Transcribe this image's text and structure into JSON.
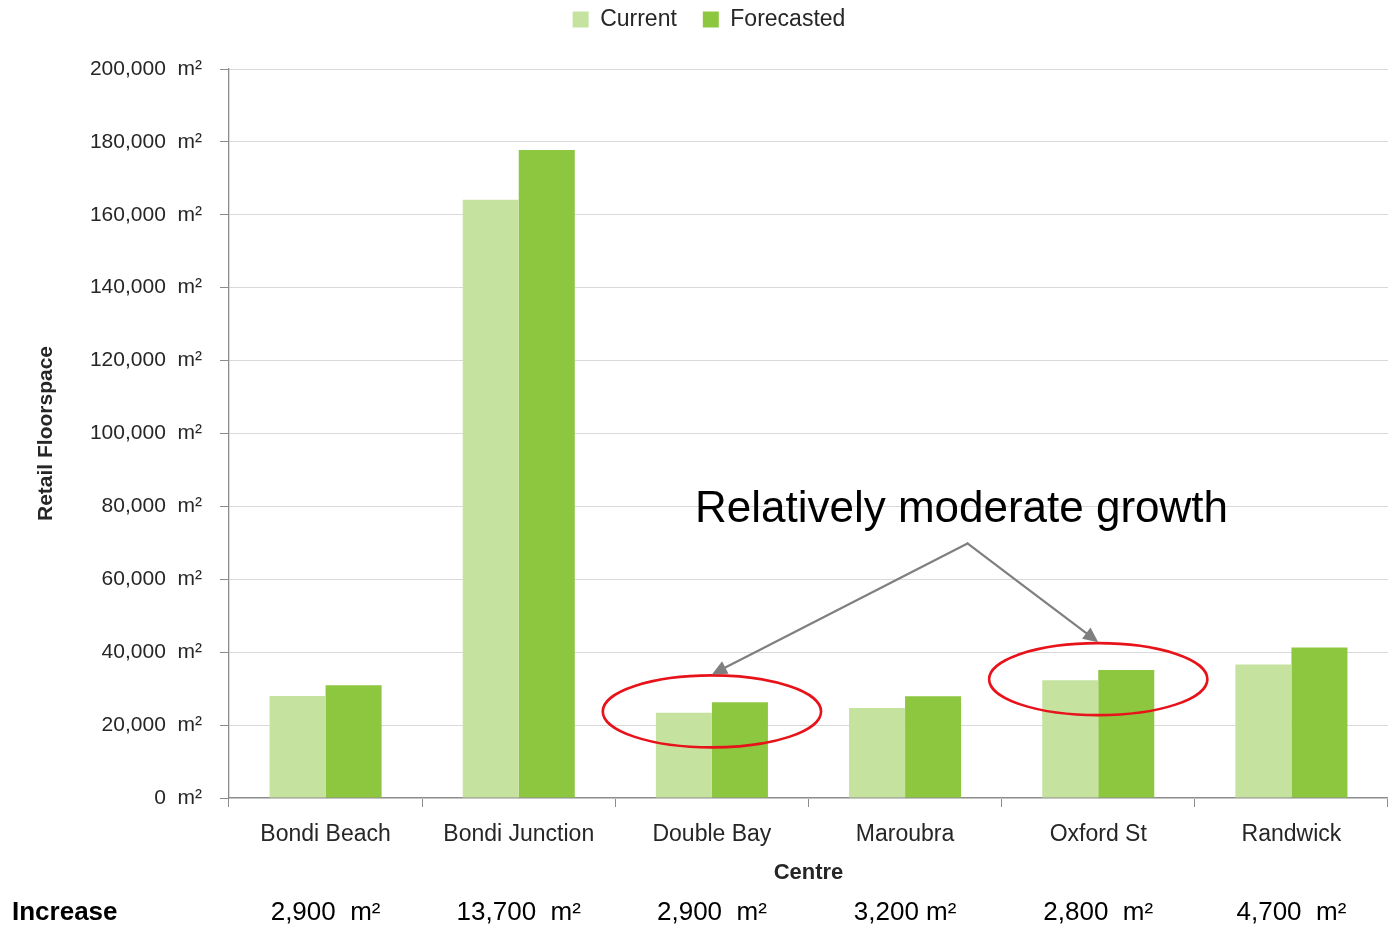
{
  "chart_data": {
    "type": "bar",
    "categories": [
      "Bondi Beach",
      "Bondi Junction",
      "Double Bay",
      "Maroubra",
      "Oxford St",
      "Randwick"
    ],
    "series": [
      {
        "name": "Current",
        "color": "#c5e29f",
        "values": [
          28000,
          164100,
          23400,
          24700,
          32300,
          36600
        ]
      },
      {
        "name": "Forecasted",
        "color": "#8dc63f",
        "values": [
          30900,
          177800,
          26300,
          27900,
          35100,
          41300
        ]
      }
    ],
    "xlabel": "Centre",
    "ylabel": "Retail Floorspace",
    "ylim": [
      0,
      200000
    ],
    "yticks": [
      {
        "value": 0,
        "label": "0  m²"
      },
      {
        "value": 20000,
        "label": "20,000  m²"
      },
      {
        "value": 40000,
        "label": "40,000  m²"
      },
      {
        "value": 60000,
        "label": "60,000  m²"
      },
      {
        "value": 80000,
        "label": "80,000  m²"
      },
      {
        "value": 100000,
        "label": "100,000  m²"
      },
      {
        "value": 120000,
        "label": "120,000  m²"
      },
      {
        "value": 140000,
        "label": "140,000  m²"
      },
      {
        "value": 160000,
        "label": "160,000  m²"
      },
      {
        "value": 180000,
        "label": "180,000  m²"
      },
      {
        "value": 200000,
        "label": "200,000  m²"
      }
    ],
    "grid": "y",
    "legend": "top",
    "annotations": [
      "Relatively moderate growth",
      "Increase",
      "2,900  m²",
      "13,700  m²",
      "2,900  m²",
      "3,200 m²",
      "2,800  m²",
      "4,700  m²"
    ]
  }
}
